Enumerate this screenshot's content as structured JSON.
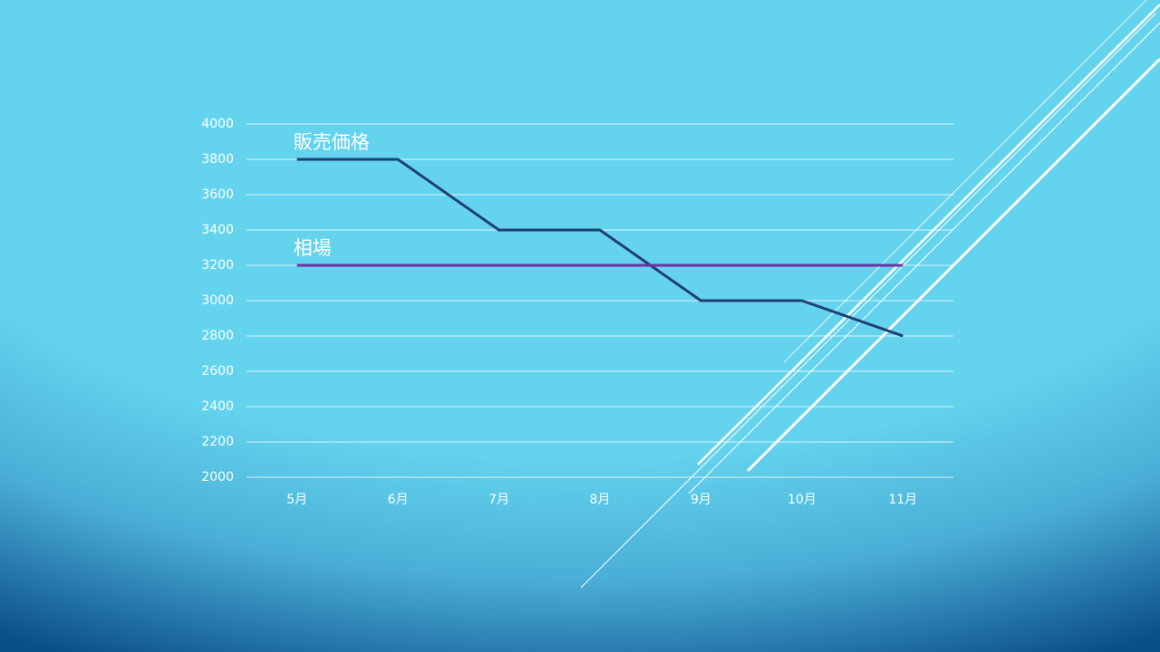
{
  "chart_data": {
    "type": "line",
    "categories": [
      "5月",
      "6月",
      "7月",
      "8月",
      "9月",
      "10月",
      "11月"
    ],
    "series": [
      {
        "name": "販売価格",
        "color": "#1f3f73",
        "values": [
          3800,
          3800,
          3400,
          3400,
          3000,
          3000,
          2800
        ]
      },
      {
        "name": "相場",
        "color": "#7030a0",
        "values": [
          3200,
          3200,
          3200,
          3200,
          3200,
          3200,
          3200
        ]
      }
    ],
    "ylim": [
      2000,
      4000
    ],
    "yticks": [
      2000,
      2200,
      2400,
      2600,
      2800,
      3000,
      3200,
      3400,
      3600,
      3800,
      4000
    ],
    "grid": true
  }
}
